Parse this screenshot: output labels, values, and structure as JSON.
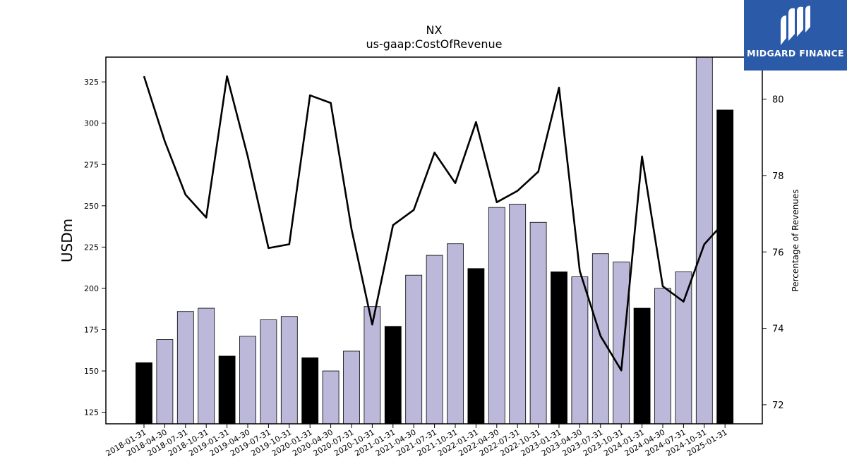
{
  "logo": {
    "text": "MIDGARD FINANCE",
    "icon": "midgard-logo-icon"
  },
  "chart_data": {
    "type": "bar",
    "title": "NX",
    "subtitle": "us-gaap:CostOfRevenue",
    "ylabel": "USDm",
    "y2label": "Percentage of Revenues",
    "ylim": [
      118,
      340
    ],
    "y2lim": [
      71.5,
      81.1
    ],
    "yticks": [
      125,
      150,
      175,
      200,
      225,
      250,
      275,
      300,
      325
    ],
    "y2ticks": [
      72,
      74,
      76,
      78,
      80
    ],
    "categories": [
      "2018-01-31",
      "2018-04-30",
      "2018-07-31",
      "2018-10-31",
      "2019-01-31",
      "2019-04-30",
      "2019-07-31",
      "2019-10-31",
      "2020-01-31",
      "2020-04-30",
      "2020-07-31",
      "2020-10-31",
      "2021-01-31",
      "2021-04-30",
      "2021-07-31",
      "2021-10-31",
      "2022-01-31",
      "2022-04-30",
      "2022-07-31",
      "2022-10-31",
      "2023-01-31",
      "2023-04-30",
      "2023-07-31",
      "2023-10-31",
      "2024-01-31",
      "2024-04-30",
      "2024-07-31",
      "2024-10-31",
      "2025-01-31"
    ],
    "series": [
      {
        "type": "bar",
        "values": [
          155,
          169,
          186,
          188,
          159,
          171,
          181,
          183,
          158,
          150,
          162,
          189,
          177,
          208,
          220,
          227,
          212,
          249,
          251,
          240,
          210,
          207,
          221,
          216,
          188,
          200,
          210,
          352,
          308
        ],
        "colors_by_quarter": {
          "fiscal_q4": "#000000",
          "other": "#bcb8d9"
        },
        "highlight": [
          true,
          false,
          false,
          false,
          true,
          false,
          false,
          false,
          true,
          false,
          false,
          false,
          true,
          false,
          false,
          false,
          true,
          false,
          false,
          false,
          true,
          false,
          false,
          false,
          true,
          false,
          false,
          false,
          true
        ]
      },
      {
        "type": "line",
        "axis": "right",
        "color": "#000000",
        "values": [
          80.6,
          78.9,
          77.5,
          76.9,
          80.6,
          78.5,
          76.1,
          76.2,
          80.1,
          79.9,
          76.6,
          74.1,
          76.7,
          77.1,
          78.6,
          77.8,
          79.4,
          77.3,
          77.6,
          78.1,
          80.3,
          75.5,
          73.8,
          72.9,
          78.5,
          75.1,
          74.7,
          76.2,
          76.8
        ]
      }
    ],
    "grid": false,
    "legend": "none"
  }
}
